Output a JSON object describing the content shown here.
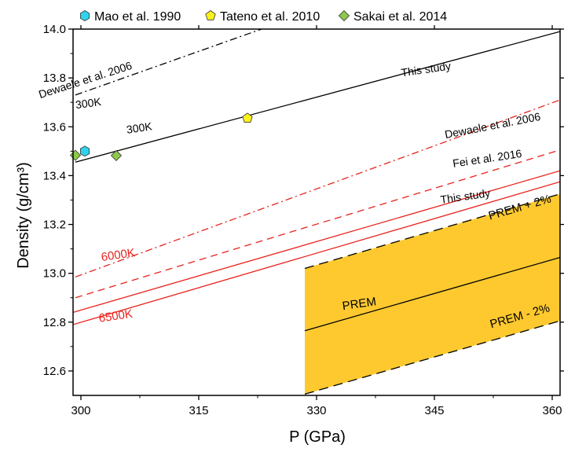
{
  "chart_data": {
    "type": "line",
    "xlabel": "P (GPa)",
    "ylabel": "Density (g/cm³)",
    "xlim": [
      299,
      361
    ],
    "ylim": [
      12.5,
      14.0
    ],
    "x_ticks": [
      300,
      315,
      330,
      345,
      360
    ],
    "y_ticks": [
      12.6,
      12.8,
      13.0,
      13.2,
      13.4,
      13.6,
      13.8,
      14.0
    ],
    "grid": false,
    "legend": {
      "placement": "top",
      "entries": [
        {
          "label": "Mao et al. 1990",
          "marker": "hexagon",
          "color": "#2fd3ea"
        },
        {
          "label": "Tateno et al. 2010",
          "marker": "pentagon",
          "color": "#fbf21a"
        },
        {
          "label": "Sakai et al. 2014",
          "marker": "diamond",
          "color": "#8dc94a"
        }
      ]
    },
    "series": [
      {
        "name": "Dewaele et al. 2006",
        "color": "#000000",
        "dash": "dashdot",
        "x": [
          299.3,
          323
        ],
        "y": [
          13.73,
          14.0
        ]
      },
      {
        "name": "This study",
        "color": "#000000",
        "dash": "solid",
        "x": [
          299.3,
          361
        ],
        "y": [
          13.455,
          13.99
        ]
      },
      {
        "name": "Dewaele et al. 2006",
        "color": "#e8231e",
        "dash": "dashdot",
        "x": [
          299.3,
          361
        ],
        "y": [
          12.985,
          13.71
        ]
      },
      {
        "name": "Fei et al. 2016",
        "color": "#e8231e",
        "dash": "dashed",
        "x": [
          299.3,
          361
        ],
        "y": [
          12.9,
          13.505
        ]
      },
      {
        "name": "This study",
        "color": "#e8231e",
        "dash": "solid",
        "x": [
          299,
          361
        ],
        "y": [
          12.84,
          13.42
        ]
      },
      {
        "name": "",
        "color": "#e8231e",
        "dash": "solid",
        "x": [
          299,
          361
        ],
        "y": [
          12.79,
          13.375
        ]
      },
      {
        "name": "PREM",
        "color": "#000000",
        "dash": "solid",
        "x": [
          328.5,
          361
        ],
        "y": [
          12.765,
          13.065
        ]
      },
      {
        "name": "PREM + 2%",
        "color": "#000000",
        "dash": "longdash",
        "x": [
          328.5,
          361
        ],
        "y": [
          13.02,
          13.325
        ]
      },
      {
        "name": "PREM - 2%",
        "color": "#000000",
        "dash": "longdash",
        "x": [
          328.5,
          361
        ],
        "y": [
          12.505,
          12.805
        ]
      }
    ],
    "band": {
      "color": "#fdc92f",
      "x_start": 328.5,
      "x_end": 361,
      "upper": [
        13.02,
        13.325
      ],
      "lower": [
        12.505,
        12.805
      ]
    },
    "points": [
      {
        "source": "Mao et al. 1990",
        "x": 300.5,
        "y": 13.5
      },
      {
        "source": "Tateno et al. 2010",
        "x": 321.2,
        "y": 13.635
      },
      {
        "source": "Sakai et al. 2014",
        "x": 299.3,
        "y": 13.483
      },
      {
        "source": "Sakai et al. 2014",
        "x": 304.5,
        "y": 13.482
      }
    ],
    "annotations": [
      {
        "text": "Dewaele et al. 2006",
        "x": 300.7,
        "y": 13.777,
        "angle": -17.8,
        "color": "#000000",
        "size": 14
      },
      {
        "text": "300K",
        "x": 301.0,
        "y": 13.681,
        "angle": -7.5,
        "color": "#000000",
        "size": 14
      },
      {
        "text": "This study",
        "x": 344.0,
        "y": 13.82,
        "angle": -8.2,
        "color": "#000000",
        "size": 14
      },
      {
        "text": "300K",
        "x": 307.5,
        "y": 13.58,
        "angle": -8.2,
        "color": "#000000",
        "size": 14
      },
      {
        "text": "Dewaele et al. 2006",
        "x": 352.5,
        "y": 13.59,
        "angle": -10.9,
        "color": "#000000",
        "size": 14
      },
      {
        "text": "Fei et al. 2016",
        "x": 351.8,
        "y": 13.455,
        "angle": -8.5,
        "color": "#000000",
        "size": 14
      },
      {
        "text": "This study",
        "x": 349.0,
        "y": 13.3,
        "angle": -8.0,
        "color": "#000000",
        "size": 14
      },
      {
        "text": "6000K",
        "x": 304.8,
        "y": 13.06,
        "angle": -8.2,
        "color": "#e8231e",
        "size": 15
      },
      {
        "text": "6500K",
        "x": 304.5,
        "y": 12.81,
        "angle": -8.2,
        "color": "#e8231e",
        "size": 15
      },
      {
        "text": "PREM + 2%",
        "x": 356.0,
        "y": 13.255,
        "angle": -16.0,
        "color": "#000000",
        "size": 15
      },
      {
        "text": "PREM",
        "x": 335.5,
        "y": 12.86,
        "angle": -8.0,
        "color": "#000000",
        "size": 15
      },
      {
        "text": "PREM - 2%",
        "x": 356.0,
        "y": 12.81,
        "angle": -16.0,
        "color": "#000000",
        "size": 15
      }
    ]
  }
}
